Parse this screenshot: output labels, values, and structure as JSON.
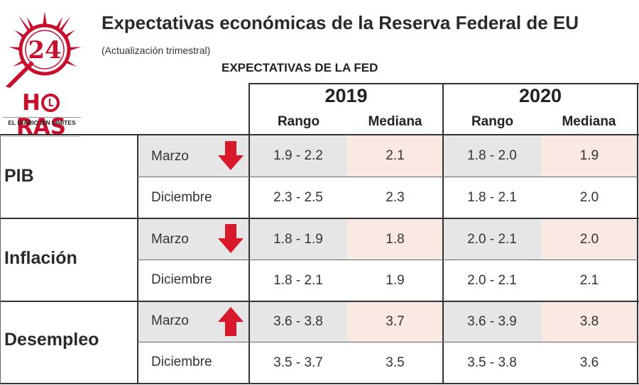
{
  "logo": {
    "number": "24",
    "word_pre": "H",
    "word_post": "RAS",
    "tagline": "EL DIARIO SIN LÍMITES",
    "color": "#c8102e"
  },
  "title": "Expectativas económicas de la Reserva Federal de EU",
  "subtitle": "(Actualización trimestral)",
  "table_heading": "EXPECTATIVAS DE LA FED",
  "years": [
    "2019",
    "2020"
  ],
  "column_headers": [
    "Rango",
    "Mediana",
    "Rango",
    "Mediana"
  ],
  "colors": {
    "range_highlight": "#e6e6e6",
    "median_highlight": "#fae9e2",
    "arrow": "#d7192b"
  },
  "groups": [
    {
      "category": "PIB",
      "rows": [
        {
          "month": "Marzo",
          "arrow": "down",
          "r2019": "1.9 - 2.2",
          "m2019": "2.1",
          "r2020": "1.8 - 2.0",
          "m2020": "1.9"
        },
        {
          "month": "Diciembre",
          "arrow": "",
          "r2019": "2.3 - 2.5",
          "m2019": "2.3",
          "r2020": "1.8 - 2.1",
          "m2020": "2.0"
        }
      ]
    },
    {
      "category": "Inflación",
      "rows": [
        {
          "month": "Marzo",
          "arrow": "down",
          "r2019": "1.8 - 1.9",
          "m2019": "1.8",
          "r2020": "2.0 - 2.1",
          "m2020": "2.0"
        },
        {
          "month": "Diciembre",
          "arrow": "",
          "r2019": "1.8 - 2.1",
          "m2019": "1.9",
          "r2020": "2.0 - 2.1",
          "m2020": "2.1"
        }
      ]
    },
    {
      "category": "Desempleo",
      "rows": [
        {
          "month": "Marzo",
          "arrow": "up",
          "r2019": "3.6 - 3.8",
          "m2019": "3.7",
          "r2020": "3.6 - 3.9",
          "m2020": "3.8"
        },
        {
          "month": "Diciembre",
          "arrow": "",
          "r2019": "3.5 - 3.7",
          "m2019": "3.5",
          "r2020": "3.5 - 3.8",
          "m2020": "3.6"
        }
      ]
    }
  ]
}
